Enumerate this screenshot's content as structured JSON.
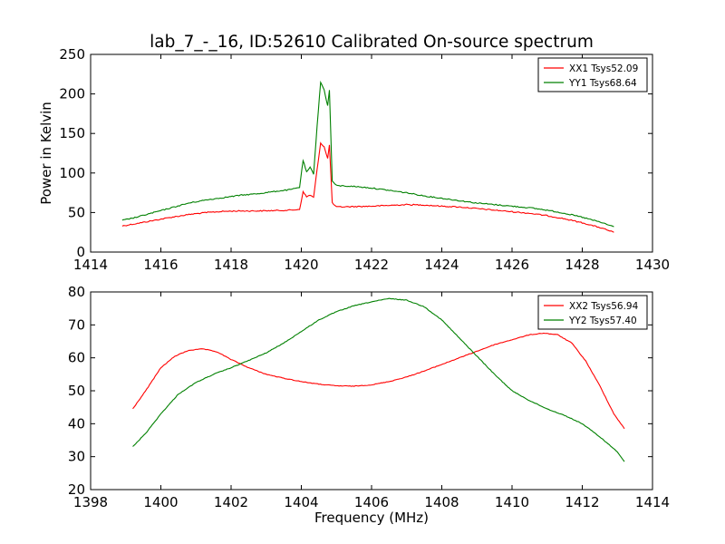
{
  "chart_data": [
    {
      "type": "line",
      "title": "lab_7_-_16, ID:52610 Calibrated On-source spectrum",
      "ylabel": "Power in Kelvin",
      "xlabel": "",
      "xlim": [
        1414,
        1430
      ],
      "ylim": [
        0,
        250
      ],
      "xticks": [
        "1414",
        "1416",
        "1418",
        "1420",
        "1422",
        "1424",
        "1426",
        "1428",
        "1430"
      ],
      "yticks": [
        "0",
        "50",
        "100",
        "150",
        "200",
        "250"
      ],
      "legend_position": "top-right",
      "series": [
        {
          "name": "XX1 Tsys52.09",
          "color": "#ff0000",
          "points": [
            [
              1414.9,
              33
            ],
            [
              1415.3,
              36
            ],
            [
              1415.8,
              40
            ],
            [
              1416.3,
              44
            ],
            [
              1416.8,
              47.5
            ],
            [
              1417.3,
              50
            ],
            [
              1417.8,
              51.5
            ],
            [
              1418.3,
              52
            ],
            [
              1418.8,
              52
            ],
            [
              1419.3,
              52.5
            ],
            [
              1419.7,
              53
            ],
            [
              1419.95,
              54
            ],
            [
              1420.05,
              76
            ],
            [
              1420.15,
              70
            ],
            [
              1420.25,
              72
            ],
            [
              1420.35,
              69
            ],
            [
              1420.45,
              105
            ],
            [
              1420.55,
              138
            ],
            [
              1420.65,
              133
            ],
            [
              1420.75,
              118
            ],
            [
              1420.8,
              136
            ],
            [
              1420.88,
              62
            ],
            [
              1421.0,
              57
            ],
            [
              1421.5,
              57.5
            ],
            [
              1422.0,
              58
            ],
            [
              1422.5,
              59
            ],
            [
              1423.0,
              60
            ],
            [
              1423.5,
              59.5
            ],
            [
              1424.0,
              58
            ],
            [
              1424.5,
              57
            ],
            [
              1425.0,
              55
            ],
            [
              1425.5,
              53
            ],
            [
              1426.0,
              51
            ],
            [
              1426.5,
              49
            ],
            [
              1427.0,
              46
            ],
            [
              1427.5,
              42
            ],
            [
              1428.0,
              37
            ],
            [
              1428.5,
              31
            ],
            [
              1428.9,
              25
            ]
          ]
        },
        {
          "name": "YY1 Tsys68.64",
          "color": "#008000",
          "points": [
            [
              1414.9,
              40
            ],
            [
              1415.3,
              44
            ],
            [
              1415.8,
              50
            ],
            [
              1416.3,
              56
            ],
            [
              1416.8,
              62
            ],
            [
              1417.3,
              66
            ],
            [
              1417.8,
              69
            ],
            [
              1418.3,
              72
            ],
            [
              1418.8,
              74
            ],
            [
              1419.3,
              77
            ],
            [
              1419.7,
              79
            ],
            [
              1419.95,
              82
            ],
            [
              1420.05,
              116
            ],
            [
              1420.15,
              101
            ],
            [
              1420.25,
              107
            ],
            [
              1420.35,
              99
            ],
            [
              1420.45,
              160
            ],
            [
              1420.55,
              215
            ],
            [
              1420.65,
              205
            ],
            [
              1420.75,
              185
            ],
            [
              1420.8,
              205
            ],
            [
              1420.88,
              90
            ],
            [
              1421.0,
              84
            ],
            [
              1421.5,
              83
            ],
            [
              1422.0,
              81
            ],
            [
              1422.5,
              78
            ],
            [
              1423.0,
              75
            ],
            [
              1423.5,
              71
            ],
            [
              1424.0,
              68
            ],
            [
              1424.5,
              65
            ],
            [
              1425.0,
              62
            ],
            [
              1425.5,
              60
            ],
            [
              1426.0,
              58
            ],
            [
              1426.5,
              56
            ],
            [
              1427.0,
              53
            ],
            [
              1427.5,
              49
            ],
            [
              1428.0,
              44
            ],
            [
              1428.5,
              38
            ],
            [
              1428.9,
              32
            ]
          ]
        }
      ]
    },
    {
      "type": "line",
      "title": "",
      "xlabel": "Frequency (MHz)",
      "ylabel": "",
      "xlim": [
        1398,
        1414
      ],
      "ylim": [
        20,
        80
      ],
      "xticks": [
        "1398",
        "1400",
        "1402",
        "1404",
        "1406",
        "1408",
        "1410",
        "1412",
        "1414"
      ],
      "yticks": [
        "20",
        "30",
        "40",
        "50",
        "60",
        "70",
        "80"
      ],
      "legend_position": "top-right",
      "series": [
        {
          "name": "XX2 Tsys56.94",
          "color": "#ff0000",
          "points": [
            [
              1399.2,
              44.5
            ],
            [
              1399.6,
              50.5
            ],
            [
              1400.0,
              57
            ],
            [
              1400.4,
              60.5
            ],
            [
              1400.8,
              62.3
            ],
            [
              1401.2,
              62.7
            ],
            [
              1401.6,
              61.8
            ],
            [
              1402.0,
              59.5
            ],
            [
              1402.5,
              57
            ],
            [
              1403.0,
              55
            ],
            [
              1403.5,
              53.8
            ],
            [
              1404.0,
              52.8
            ],
            [
              1404.5,
              52
            ],
            [
              1405.0,
              51.5
            ],
            [
              1405.5,
              51.4
            ],
            [
              1406.0,
              51.8
            ],
            [
              1406.5,
              52.8
            ],
            [
              1407.0,
              54.2
            ],
            [
              1407.5,
              56
            ],
            [
              1408.0,
              58
            ],
            [
              1408.5,
              60
            ],
            [
              1409.0,
              62
            ],
            [
              1409.5,
              64
            ],
            [
              1410.0,
              65.5
            ],
            [
              1410.5,
              67
            ],
            [
              1410.9,
              67.5
            ],
            [
              1411.3,
              67
            ],
            [
              1411.7,
              64.5
            ],
            [
              1412.1,
              59
            ],
            [
              1412.5,
              51.5
            ],
            [
              1412.9,
              43
            ],
            [
              1413.2,
              38.5
            ]
          ]
        },
        {
          "name": "YY2 Tsys57.40",
          "color": "#008000",
          "points": [
            [
              1399.2,
              33
            ],
            [
              1399.6,
              37.5
            ],
            [
              1400.0,
              43
            ],
            [
              1400.5,
              49
            ],
            [
              1401.0,
              52.5
            ],
            [
              1401.5,
              55
            ],
            [
              1402.0,
              57
            ],
            [
              1402.5,
              59.2
            ],
            [
              1403.0,
              61.5
            ],
            [
              1403.5,
              64.5
            ],
            [
              1404.0,
              68
            ],
            [
              1404.5,
              71.5
            ],
            [
              1405.0,
              74
            ],
            [
              1405.5,
              75.8
            ],
            [
              1406.0,
              77
            ],
            [
              1406.5,
              78
            ],
            [
              1407.0,
              77.5
            ],
            [
              1407.5,
              75.5
            ],
            [
              1408.0,
              71.5
            ],
            [
              1408.5,
              66
            ],
            [
              1409.0,
              60.5
            ],
            [
              1409.5,
              55
            ],
            [
              1410.0,
              50
            ],
            [
              1410.5,
              47
            ],
            [
              1411.0,
              44.5
            ],
            [
              1411.5,
              42.5
            ],
            [
              1412.0,
              40
            ],
            [
              1412.5,
              36
            ],
            [
              1413.0,
              31.5
            ],
            [
              1413.2,
              28.5
            ]
          ]
        }
      ]
    }
  ]
}
